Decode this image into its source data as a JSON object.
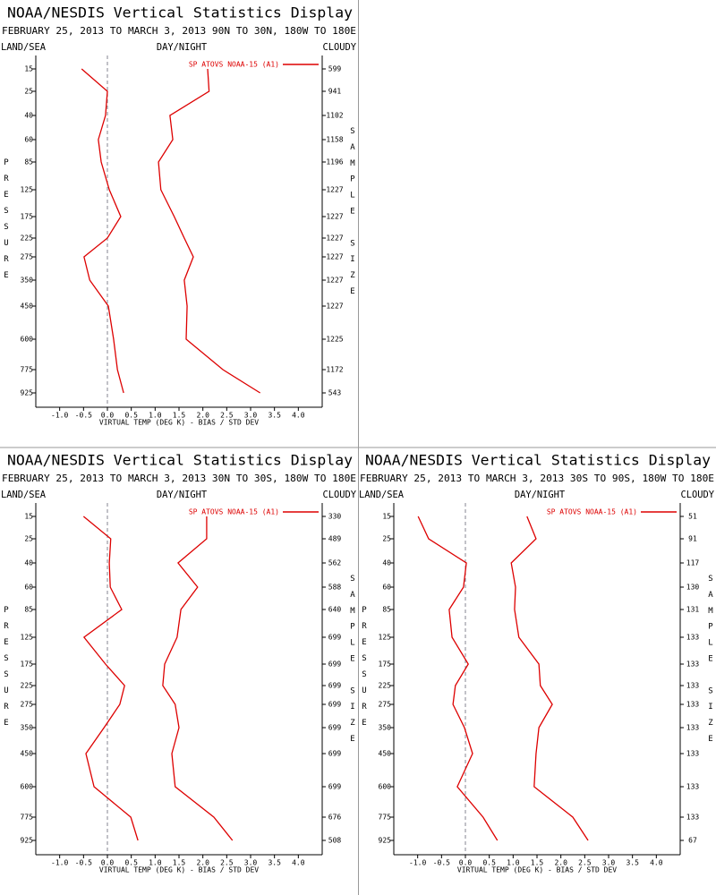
{
  "chart_data": [
    {
      "type": "line",
      "title": "NOAA/NESDIS Vertical Statistics Display",
      "subtitle": "FEBRUARY 25, 2013 TO MARCH 3, 2013 90N TO 30N, 180W TO 180E",
      "header_labels": [
        "LAND/SEA",
        "DAY/NIGHT",
        "CLOUDY"
      ],
      "ylabel": "PRESSURE",
      "y2label": "SAMPLE SIZE",
      "xlabel": "VIRTUAL TEMP (DEG K) - BIAS / STD DEV",
      "legend": "SP ATOVS NOAA-15 (A1)",
      "categories": [
        15,
        25,
        40,
        60,
        85,
        125,
        175,
        225,
        275,
        350,
        450,
        600,
        775,
        925
      ],
      "sample_sizes": [
        599,
        941,
        1102,
        1158,
        1196,
        1227,
        1227,
        1227,
        1227,
        1227,
        1227,
        1225,
        1172,
        543
      ],
      "series": [
        {
          "color": "#dd0000",
          "values": [
            -0.54,
            0.0,
            -0.04,
            -0.19,
            -0.13,
            0.04,
            0.28,
            0.0,
            -0.49,
            -0.37,
            0.02,
            0.13,
            0.21,
            0.34
          ]
        },
        {
          "color": "#dd0000",
          "values": [
            2.1,
            2.13,
            1.31,
            1.37,
            1.07,
            1.12,
            1.4,
            1.61,
            1.8,
            1.61,
            1.67,
            1.65,
            2.42,
            3.2
          ]
        }
      ],
      "xlim": [
        -1.5,
        4.5
      ],
      "xticks": [
        {
          "value": -1,
          "label": "-1.0"
        },
        -0.5,
        {
          "value": 0,
          "label": "0.0"
        },
        0.5,
        {
          "value": 1,
          "label": "1.0"
        },
        1.5,
        {
          "value": 2,
          "label": "2.0"
        },
        2.5,
        {
          "value": 3,
          "label": "3.0"
        },
        3.5,
        {
          "value": 4,
          "label": "4.0"
        }
      ]
    },
    {
      "type": "line",
      "title": "NOAA/NESDIS Vertical Statistics Display",
      "subtitle": "FEBRUARY 25, 2013 TO MARCH 3, 2013 30N TO 30S, 180W TO 180E",
      "header_labels": [
        "LAND/SEA",
        "DAY/NIGHT",
        "CLOUDY"
      ],
      "ylabel": "PRESSURE",
      "y2label": "SAMPLE SIZE",
      "xlabel": "VIRTUAL TEMP (DEG K) - BIAS / STD DEV",
      "legend": "SP ATOVS NOAA-15 (A1)",
      "categories": [
        15,
        25,
        40,
        60,
        85,
        125,
        175,
        225,
        275,
        350,
        450,
        600,
        775,
        925
      ],
      "sample_sizes": [
        330,
        489,
        562,
        588,
        640,
        699,
        699,
        699,
        699,
        699,
        699,
        699,
        676,
        508
      ],
      "series": [
        {
          "color": "#dd0000",
          "values": [
            -0.5,
            0.07,
            0.04,
            0.06,
            0.3,
            -0.49,
            -0.04,
            0.36,
            0.26,
            -0.07,
            -0.45,
            -0.28,
            0.49,
            0.64
          ]
        },
        {
          "color": "#dd0000",
          "values": [
            2.08,
            2.08,
            1.48,
            1.89,
            1.54,
            1.46,
            1.2,
            1.16,
            1.42,
            1.5,
            1.35,
            1.42,
            2.23,
            2.62
          ]
        }
      ],
      "xlim": [
        -1.5,
        4.5
      ],
      "xticks": [
        {
          "value": -1,
          "label": "-1.0"
        },
        -0.5,
        {
          "value": 0,
          "label": "0.0"
        },
        0.5,
        {
          "value": 1,
          "label": "1.0"
        },
        1.5,
        {
          "value": 2,
          "label": "2.0"
        },
        2.5,
        {
          "value": 3,
          "label": "3.0"
        },
        3.5,
        {
          "value": 4,
          "label": "4.0"
        }
      ]
    },
    {
      "type": "line",
      "title": "NOAA/NESDIS Vertical Statistics Display",
      "subtitle": "FEBRUARY 25, 2013 TO MARCH 3, 2013 30S TO 90S, 180W TO 180E",
      "header_labels": [
        "LAND/SEA",
        "DAY/NIGHT",
        "CLOUDY"
      ],
      "ylabel": "PRESSURE",
      "y2label": "SAMPLE SIZE",
      "xlabel": "VIRTUAL TEMP (DEG K) - BIAS / STD DEV",
      "legend": "SP ATOVS NOAA-15 (A1)",
      "categories": [
        15,
        25,
        40,
        60,
        85,
        125,
        175,
        225,
        275,
        350,
        450,
        600,
        775,
        925
      ],
      "sample_sizes": [
        51,
        91,
        117,
        130,
        131,
        133,
        133,
        133,
        133,
        133,
        133,
        133,
        133,
        67
      ],
      "series": [
        {
          "color": "#dd0000",
          "values": [
            -0.99,
            -0.77,
            0.02,
            -0.04,
            -0.34,
            -0.28,
            0.06,
            -0.21,
            -0.26,
            -0.02,
            0.15,
            -0.17,
            0.37,
            0.67
          ]
        },
        {
          "color": "#dd0000",
          "values": [
            1.29,
            1.48,
            0.96,
            1.05,
            1.03,
            1.12,
            1.54,
            1.57,
            1.82,
            1.54,
            1.48,
            1.44,
            2.25,
            2.57
          ]
        }
      ],
      "xlim": [
        -1.5,
        4.5
      ],
      "xticks": [
        {
          "value": -1,
          "label": "-1.0"
        },
        -0.5,
        {
          "value": 0,
          "label": "0.0"
        },
        0.5,
        {
          "value": 1,
          "label": "1.0"
        },
        1.5,
        {
          "value": 2,
          "label": "2.0"
        },
        2.5,
        {
          "value": 3,
          "label": "3.0"
        },
        3.5,
        {
          "value": 4,
          "label": "4.0"
        }
      ]
    }
  ]
}
